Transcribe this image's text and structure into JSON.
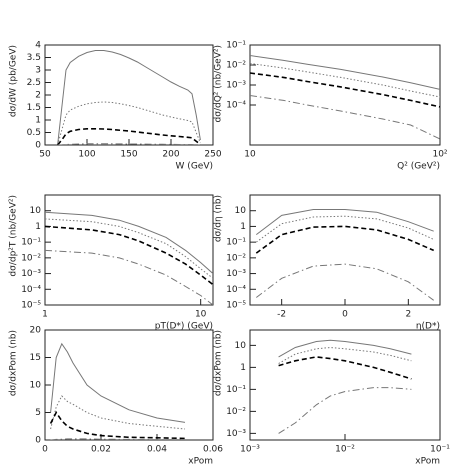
{
  "chart_data": [
    {
      "type": "line",
      "xlabel": "W (GeV)",
      "ylabel": "dσ/dW (pb/GeV)",
      "xlim": [
        50,
        250
      ],
      "ylim": [
        0,
        4
      ],
      "xticks": [
        50,
        100,
        150,
        200,
        250
      ],
      "yticks": [
        0,
        0.5,
        1,
        1.5,
        2,
        2.5,
        3,
        3.5,
        4
      ],
      "x": [
        65,
        70,
        75,
        80,
        90,
        100,
        110,
        120,
        130,
        140,
        150,
        160,
        170,
        180,
        190,
        200,
        210,
        220,
        225,
        230,
        235
      ],
      "series": [
        {
          "color": "#777777",
          "dash": "solid",
          "values": [
            0,
            1.5,
            3.0,
            3.3,
            3.55,
            3.7,
            3.78,
            3.78,
            3.72,
            3.62,
            3.48,
            3.32,
            3.12,
            2.92,
            2.72,
            2.52,
            2.35,
            2.2,
            2.05,
            1.2,
            0.2
          ]
        },
        {
          "color": "#777777",
          "dash": "dotted",
          "values": [
            0,
            0.6,
            1.2,
            1.4,
            1.55,
            1.65,
            1.7,
            1.72,
            1.7,
            1.65,
            1.58,
            1.5,
            1.4,
            1.3,
            1.2,
            1.12,
            1.05,
            0.98,
            0.92,
            0.5,
            0.08
          ]
        },
        {
          "color": "#000000",
          "dash": "dashed",
          "values": [
            0,
            0.2,
            0.45,
            0.55,
            0.62,
            0.65,
            0.65,
            0.64,
            0.62,
            0.59,
            0.56,
            0.52,
            0.48,
            0.44,
            0.4,
            0.37,
            0.34,
            0.31,
            0.29,
            0.15,
            0.03
          ]
        },
        {
          "color": "#777777",
          "dash": "dashdot",
          "values": [
            0,
            0.01,
            0.02,
            0.03,
            0.04,
            0.05,
            0.05,
            0.05,
            0.05,
            0.045,
            0.04,
            0.04,
            0.035,
            0.03,
            0.03,
            0.025,
            0.02,
            0.02,
            0.02,
            0.01,
            0
          ]
        }
      ]
    },
    {
      "type": "line",
      "xlabel": "Q² (GeV²)",
      "ylabel": "dσ/dQ² (nb/GeV²)",
      "log_x": true,
      "log_y": true,
      "xlim": [
        10,
        100
      ],
      "ylim": [
        1e-06,
        0.1
      ],
      "xticks": [
        10,
        {
          "value": 100,
          "label": "10²"
        }
      ],
      "yticks": [
        {
          "value": 0.1,
          "label": "10⁻¹"
        },
        {
          "value": 0.01,
          "label": "10⁻²"
        },
        {
          "value": 0.001,
          "label": "10⁻³"
        },
        {
          "value": 0.0001,
          "label": "10⁻⁴"
        }
      ],
      "x": [
        10,
        15,
        20,
        30,
        50,
        70,
        100
      ],
      "series": [
        {
          "color": "#777777",
          "dash": "solid",
          "values": [
            0.03,
            0.017,
            0.011,
            0.006,
            0.0025,
            0.0013,
            0.0006
          ]
        },
        {
          "color": "#777777",
          "dash": "dotted",
          "values": [
            0.012,
            0.007,
            0.0045,
            0.0024,
            0.001,
            0.0005,
            0.00025
          ]
        },
        {
          "color": "#000000",
          "dash": "dashed",
          "values": [
            0.004,
            0.0024,
            0.0015,
            0.0008,
            0.00033,
            0.00017,
            8e-05
          ]
        },
        {
          "color": "#777777",
          "dash": "dashdot",
          "values": [
            0.0003,
            0.00017,
            0.0001,
            5e-05,
            2e-05,
            1e-05,
            2e-06
          ]
        }
      ]
    },
    {
      "type": "line",
      "xlabel": "pT(D*) (GeV)",
      "ylabel": "dσ/dp²T (nb/GeV²)",
      "log_x": true,
      "log_y": true,
      "xlim": [
        1,
        12
      ],
      "ylim": [
        1e-05,
        100
      ],
      "xticks": [
        1,
        10
      ],
      "yticks": [
        10,
        1,
        {
          "value": 0.1,
          "label": "10⁻¹"
        },
        {
          "value": 0.01,
          "label": "10⁻²"
        },
        {
          "value": 0.001,
          "label": "10⁻³"
        },
        {
          "value": 0.0001,
          "label": "10⁻⁴"
        },
        {
          "value": 1e-05,
          "label": "10⁻⁵"
        }
      ],
      "x": [
        1,
        2,
        3,
        4,
        6,
        8,
        10,
        12
      ],
      "series": [
        {
          "color": "#777777",
          "dash": "solid",
          "values": [
            8,
            5,
            2.5,
            1,
            0.2,
            0.03,
            0.005,
            0.001
          ]
        },
        {
          "color": "#777777",
          "dash": "dotted",
          "values": [
            3,
            2,
            1,
            0.4,
            0.08,
            0.012,
            0.002,
            0.0005
          ]
        },
        {
          "color": "#000000",
          "dash": "dashed",
          "values": [
            1,
            0.6,
            0.3,
            0.12,
            0.02,
            0.004,
            0.0008,
            0.0002
          ]
        },
        {
          "color": "#777777",
          "dash": "dashdot",
          "values": [
            0.03,
            0.02,
            0.01,
            0.004,
            0.0008,
            0.00015,
            4e-05,
            1e-05
          ]
        }
      ]
    },
    {
      "type": "line",
      "xlabel": "η(D*)",
      "ylabel": "dσ/dη (nb)",
      "log_y": true,
      "xlim": [
        -3,
        3
      ],
      "ylim": [
        1e-05,
        100
      ],
      "xticks": [
        -2,
        0,
        2
      ],
      "yticks": [
        10,
        1,
        {
          "value": 0.1,
          "label": "10⁻¹"
        },
        {
          "value": 0.01,
          "label": "10⁻²"
        },
        {
          "value": 0.001,
          "label": "10⁻³"
        },
        {
          "value": 0.0001,
          "label": "10⁻⁴"
        },
        {
          "value": 1e-05,
          "label": "10⁻⁵"
        }
      ],
      "x": [
        -2.8,
        -2,
        -1,
        0,
        1,
        2,
        2.8
      ],
      "series": [
        {
          "color": "#777777",
          "dash": "solid",
          "values": [
            0.3,
            5,
            12,
            12,
            8,
            2,
            0.5
          ]
        },
        {
          "color": "#777777",
          "dash": "dotted",
          "values": [
            0.1,
            1.5,
            4,
            4.5,
            3,
            0.8,
            0.15
          ]
        },
        {
          "color": "#000000",
          "dash": "dashed",
          "values": [
            0.02,
            0.3,
            0.9,
            1,
            0.6,
            0.15,
            0.03
          ]
        },
        {
          "color": "#777777",
          "dash": "dashdot",
          "values": [
            3e-05,
            0.0005,
            0.003,
            0.004,
            0.002,
            0.0003,
            2e-05
          ]
        }
      ]
    },
    {
      "type": "line",
      "xlabel": "xPom",
      "ylabel": "dσ/dxPom (nb)",
      "xlim": [
        0,
        0.06
      ],
      "ylim": [
        0,
        20
      ],
      "xticks": [
        0,
        0.02,
        0.04,
        0.06
      ],
      "yticks": [
        0,
        5,
        10,
        15,
        20
      ],
      "x": [
        0.002,
        0.004,
        0.006,
        0.008,
        0.01,
        0.015,
        0.02,
        0.03,
        0.04,
        0.05
      ],
      "series": [
        {
          "color": "#777777",
          "dash": "solid",
          "values": [
            5,
            15,
            17.5,
            16,
            14,
            10,
            8,
            5.5,
            4,
            3.2
          ]
        },
        {
          "color": "#777777",
          "dash": "dotted",
          "values": [
            2,
            6,
            8,
            7,
            6.5,
            5,
            4,
            3,
            2.5,
            2
          ]
        },
        {
          "color": "#000000",
          "dash": "dashed",
          "values": [
            3,
            5,
            3.5,
            2.5,
            2,
            1.2,
            0.8,
            0.5,
            0.4,
            0.3
          ]
        },
        {
          "color": "#777777",
          "dash": "dashdot",
          "values": [
            0,
            0.1,
            0.15,
            0.2,
            0.2,
            0.2,
            0.15,
            0.1,
            0.08,
            0.05
          ]
        }
      ]
    },
    {
      "type": "line",
      "xlabel": "xPom",
      "ylabel": "dσ/dxPom (nb)",
      "log_x": true,
      "log_y": true,
      "xlim": [
        0.001,
        0.1
      ],
      "ylim": [
        0.0005,
        50
      ],
      "xticks": [
        {
          "value": 0.001,
          "label": "10⁻³"
        },
        {
          "value": 0.01,
          "label": "10⁻²"
        },
        {
          "value": 0.1,
          "label": "10⁻¹"
        }
      ],
      "yticks": [
        10,
        1,
        {
          "value": 0.1,
          "label": "10⁻¹"
        },
        {
          "value": 0.01,
          "label": "10⁻²"
        },
        {
          "value": 0.001,
          "label": "10⁻³"
        }
      ],
      "x": [
        0.002,
        0.003,
        0.005,
        0.007,
        0.01,
        0.02,
        0.03,
        0.05
      ],
      "series": [
        {
          "color": "#777777",
          "dash": "solid",
          "values": [
            3,
            8,
            15,
            17,
            15,
            10,
            7,
            4
          ]
        },
        {
          "color": "#777777",
          "dash": "dotted",
          "values": [
            1.5,
            4,
            7,
            8,
            7,
            5,
            3.5,
            2
          ]
        },
        {
          "color": "#000000",
          "dash": "dashed",
          "values": [
            1.2,
            2,
            3,
            2.5,
            2,
            1,
            0.6,
            0.3
          ]
        },
        {
          "color": "#777777",
          "dash": "dashdot",
          "values": [
            0.001,
            0.003,
            0.02,
            0.05,
            0.08,
            0.12,
            0.12,
            0.1
          ]
        }
      ]
    }
  ]
}
